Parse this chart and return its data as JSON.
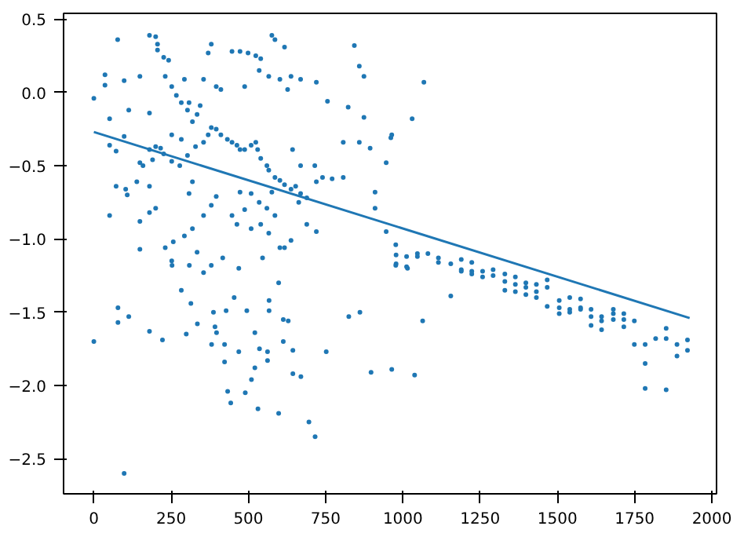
{
  "chart_data": {
    "type": "scatter",
    "grid": false,
    "xlim": [
      -98,
      2015
    ],
    "ylim": [
      -2.74,
      0.54
    ],
    "xticks": [
      0,
      250,
      500,
      750,
      1000,
      1250,
      1500,
      1750,
      2000
    ],
    "yticks": [
      {
        "value": -2.5,
        "label": "−2.5"
      },
      {
        "value": -2.0,
        "label": "−2.0"
      },
      {
        "value": -1.5,
        "label": "−1.5"
      },
      {
        "value": -1.0,
        "label": "−1.0"
      },
      {
        "value": -0.5,
        "label": "−0.5"
      },
      {
        "value": 0.0,
        "label": "0.0"
      },
      {
        "value": 0.5,
        "label": "0.5"
      }
    ],
    "series": [
      {
        "marker": "circle",
        "color": "#1f77b4",
        "x": [
          0,
          77,
          36,
          36,
          51,
          51,
          72,
          72,
          51,
          98,
          113,
          98,
          103,
          108,
          149,
          149,
          159,
          149,
          180,
          200,
          206,
          206,
          226,
          231,
          242,
          180,
          200,
          180,
          216,
          226,
          190,
          180,
          139,
          200,
          180,
          149,
          252,
          267,
          283,
          293,
          303,
          319,
          308,
          334,
          344,
          355,
          380,
          370,
          396,
          411,
          447,
          473,
          499,
          524,
          540,
          535,
          488,
          566,
          576,
          586,
          617,
          602,
          627,
          638,
          669,
          720,
          756,
          843,
          859,
          874,
          823,
          874,
          807,
          859,
          894,
          946,
          961,
          910,
          910,
          946,
          977,
          977,
          252,
          283,
          303,
          329,
          355,
          370,
          380,
          396,
          411,
          432,
          447,
          463,
          473,
          488,
          509,
          524,
          530,
          540,
          560,
          566,
          586,
          602,
          617,
          638,
          653,
          669,
          689,
          663,
          643,
          669,
          715,
          740,
          771,
          807,
          720,
          576,
          560,
          535,
          509,
          473,
          447,
          463,
          488,
          509,
          540,
          566,
          586,
          617,
          602,
          638,
          689,
          720,
          380,
          396,
          355,
          319,
          293,
          257,
          231,
          308,
          319,
          278,
          252,
          334,
          380,
          252,
          253,
          309,
          355,
          417,
          469,
          546,
          1015,
          0,
          78,
          78,
          113,
          98,
          180,
          222,
          283,
          299,
          314,
          335,
          381,
          387,
          392,
          397,
          428,
          423,
          423,
          433,
          443,
          454,
          469,
          495,
          490,
          510,
          521,
          521,
          531,
          536,
          562,
          562,
          567,
          567,
          598,
          598,
          613,
          629,
          613,
          644,
          644,
          670,
          696,
          716,
          752,
          825,
          861,
          897,
          964,
          1068,
          1030,
          964,
          1064,
          1038,
          978,
          978,
          1012,
          1012,
          1047,
          1047,
          1081,
          1115,
          1115,
          1155,
          1155,
          1189,
          1189,
          1189,
          1223,
          1223,
          1223,
          1258,
          1258,
          1292,
          1292,
          1330,
          1330,
          1330,
          1364,
          1364,
          1364,
          1398,
          1398,
          1398,
          1432,
          1432,
          1432,
          1467,
          1467,
          1467,
          1506,
          1506,
          1506,
          1540,
          1540,
          1540,
          1575,
          1575,
          1575,
          1609,
          1609,
          1609,
          1643,
          1643,
          1643,
          1681,
          1681,
          1681,
          1715,
          1715,
          1715,
          1749,
          1749,
          1784,
          1784,
          1784,
          1818,
          1852,
          1852,
          1852,
          1887,
          1887,
          1921,
          1921
        ],
        "values": [
          -0.04,
          0.36,
          0.12,
          0.05,
          -0.18,
          -0.36,
          -0.4,
          -0.64,
          -0.84,
          0.08,
          -0.12,
          -0.3,
          -0.66,
          -0.7,
          0.11,
          -0.48,
          -0.5,
          -1.07,
          0.39,
          0.38,
          0.33,
          0.29,
          0.24,
          0.11,
          0.22,
          -0.14,
          -0.37,
          -0.39,
          -0.38,
          -0.42,
          -0.46,
          -0.64,
          -0.61,
          -0.79,
          -0.82,
          -0.88,
          0.04,
          -0.02,
          -0.07,
          0.09,
          -0.12,
          -0.2,
          -0.07,
          -0.15,
          -0.09,
          0.09,
          0.33,
          0.27,
          0.04,
          0.02,
          0.28,
          0.28,
          0.27,
          0.25,
          0.23,
          0.15,
          0.04,
          0.11,
          0.39,
          0.36,
          0.31,
          0.09,
          0.02,
          0.11,
          0.09,
          0.07,
          -0.06,
          0.32,
          0.18,
          0.11,
          -0.1,
          -0.17,
          -0.34,
          -0.34,
          -0.38,
          -0.48,
          -0.31,
          -0.68,
          -0.79,
          -0.95,
          -1.04,
          -1.18,
          -0.29,
          -0.32,
          -0.43,
          -0.37,
          -0.34,
          -0.29,
          -0.24,
          -0.25,
          -0.29,
          -0.32,
          -0.34,
          -0.36,
          -0.39,
          -0.39,
          -0.36,
          -0.34,
          -0.39,
          -0.45,
          -0.5,
          -0.53,
          -0.58,
          -0.6,
          -0.63,
          -0.66,
          -0.64,
          -0.69,
          -0.72,
          -0.75,
          -0.39,
          -0.5,
          -0.5,
          -0.58,
          -0.59,
          -0.58,
          -0.61,
          -0.68,
          -0.79,
          -0.75,
          -0.69,
          -0.68,
          -0.84,
          -0.9,
          -0.8,
          -0.93,
          -0.9,
          -0.96,
          -0.84,
          -1.06,
          -1.06,
          -1.01,
          -0.9,
          -0.95,
          -0.77,
          -0.71,
          -0.84,
          -0.93,
          -0.98,
          -1.02,
          -1.06,
          -0.69,
          -0.61,
          -0.5,
          -0.47,
          -1.09,
          -1.18,
          -1.15,
          -1.18,
          -1.18,
          -1.23,
          -1.13,
          -1.2,
          -1.13,
          -1.2,
          -1.7,
          -1.47,
          -1.57,
          -1.53,
          -2.6,
          -1.63,
          -1.69,
          -1.35,
          -1.65,
          -1.44,
          -1.58,
          -1.72,
          -1.5,
          -1.6,
          -1.64,
          -1.49,
          -1.72,
          -1.84,
          -2.04,
          -2.12,
          -1.4,
          -1.77,
          -1.49,
          -2.05,
          -1.96,
          -1.64,
          -1.88,
          -2.16,
          -1.75,
          -1.77,
          -1.83,
          -1.42,
          -1.49,
          -1.3,
          -2.19,
          -1.55,
          -1.56,
          -1.7,
          -1.76,
          -1.92,
          -1.94,
          -2.25,
          -2.35,
          -1.77,
          -1.53,
          -1.5,
          -1.91,
          -1.89,
          0.07,
          -0.18,
          -0.29,
          -1.56,
          -1.93,
          -1.11,
          -1.17,
          -1.12,
          -1.19,
          -1.1,
          -1.12,
          -1.1,
          -1.13,
          -1.16,
          -1.17,
          -1.39,
          -1.14,
          -1.21,
          -1.22,
          -1.16,
          -1.22,
          -1.24,
          -1.22,
          -1.26,
          -1.21,
          -1.25,
          -1.24,
          -1.29,
          -1.35,
          -1.26,
          -1.31,
          -1.36,
          -1.3,
          -1.33,
          -1.38,
          -1.31,
          -1.36,
          -1.4,
          -1.28,
          -1.33,
          -1.46,
          -1.42,
          -1.47,
          -1.51,
          -1.4,
          -1.48,
          -1.5,
          -1.41,
          -1.47,
          -1.48,
          -1.48,
          -1.53,
          -1.59,
          -1.53,
          -1.56,
          -1.62,
          -1.48,
          -1.51,
          -1.55,
          -1.51,
          -1.55,
          -1.6,
          -1.56,
          -1.72,
          -1.72,
          -1.85,
          -2.02,
          -1.68,
          -1.61,
          -1.68,
          -2.03,
          -1.72,
          -1.8,
          -1.69,
          -1.76
        ]
      },
      {
        "type": "line",
        "color": "#1f77b4",
        "x": [
          0,
          1928
        ],
        "values": [
          -0.27,
          -1.54
        ]
      }
    ]
  }
}
